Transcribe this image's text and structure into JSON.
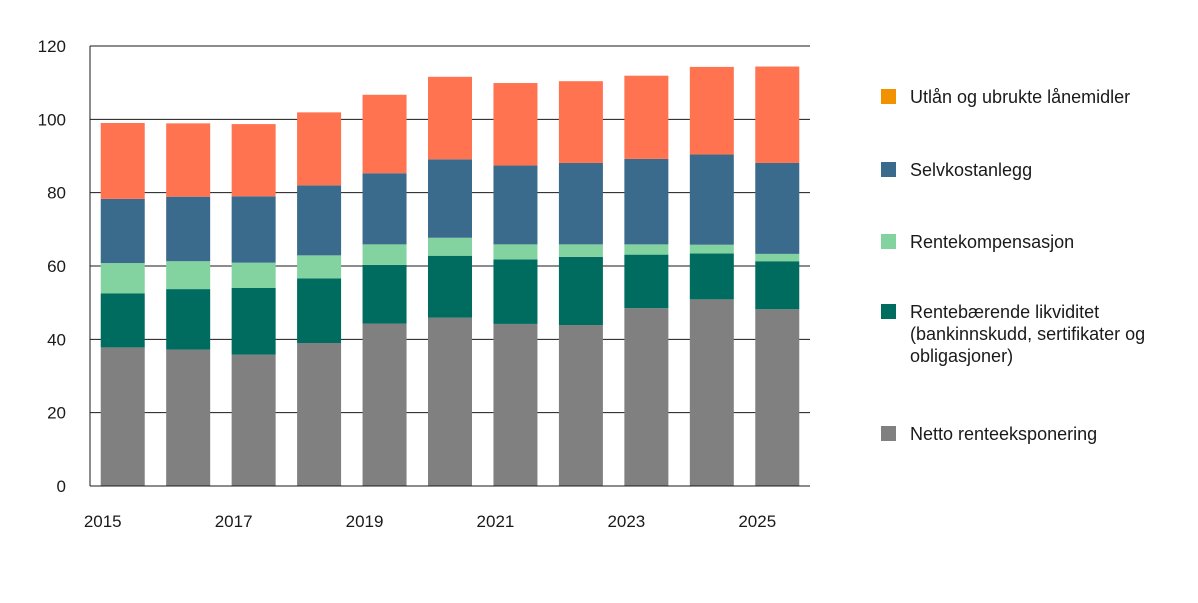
{
  "chart_data": {
    "type": "bar",
    "stacked": true,
    "categories": [
      "2015",
      "2016",
      "2017",
      "2018",
      "2019",
      "2020",
      "2021",
      "2022",
      "2023",
      "2024",
      "2025"
    ],
    "x_tick_labels": [
      "2015",
      "2017",
      "2019",
      "2021",
      "2023",
      "2025"
    ],
    "ylim": [
      0,
      120
    ],
    "y_ticks": [
      "0",
      "20",
      "40",
      "60",
      "80",
      "100",
      "120"
    ],
    "grid": true,
    "legend_position": "right",
    "series": [
      {
        "name": "Netto renteeksponering",
        "color": "#808080",
        "values": [
          37.8,
          37.2,
          35.8,
          39.0,
          44.3,
          45.9,
          44.2,
          43.9,
          48.5,
          50.9,
          48.2
        ]
      },
      {
        "name": "Rentebærende likviditet (bankinnskudd, sertifikater og obligasjoner)",
        "color": "#006b5f",
        "values": [
          14.7,
          16.5,
          18.2,
          17.6,
          16.0,
          16.9,
          17.6,
          18.6,
          14.6,
          12.5,
          13.1
        ]
      },
      {
        "name": "Rentekompensasjon",
        "color": "#82d3a0",
        "values": [
          8.3,
          7.6,
          6.9,
          6.3,
          5.6,
          4.9,
          4.1,
          3.4,
          2.8,
          2.4,
          2.0
        ]
      },
      {
        "name": "Selvkostanlegg",
        "color": "#3a6b8c",
        "values": [
          17.5,
          17.6,
          18.1,
          19.1,
          19.4,
          21.4,
          21.5,
          22.2,
          23.3,
          24.6,
          24.8
        ]
      },
      {
        "name": "Utlån og ubrukte lånemidler",
        "color": "#ff7351",
        "values": [
          20.7,
          20.0,
          19.7,
          19.9,
          21.4,
          22.5,
          22.5,
          22.3,
          22.7,
          23.9,
          26.3
        ]
      }
    ]
  },
  "legend": {
    "items": [
      {
        "label": "Utlån og ubrukte lånemidler",
        "color": "#f39200"
      },
      {
        "label": "Selvkostanlegg",
        "color": "#3a6b8c"
      },
      {
        "label": "Rentekompensasjon",
        "color": "#82d3a0"
      },
      {
        "label": "Rentebærende likviditet (bankinnskudd, sertifikater og obligasjoner)",
        "color": "#006b5f"
      },
      {
        "label": "Netto renteeksponering",
        "color": "#808080"
      }
    ]
  }
}
